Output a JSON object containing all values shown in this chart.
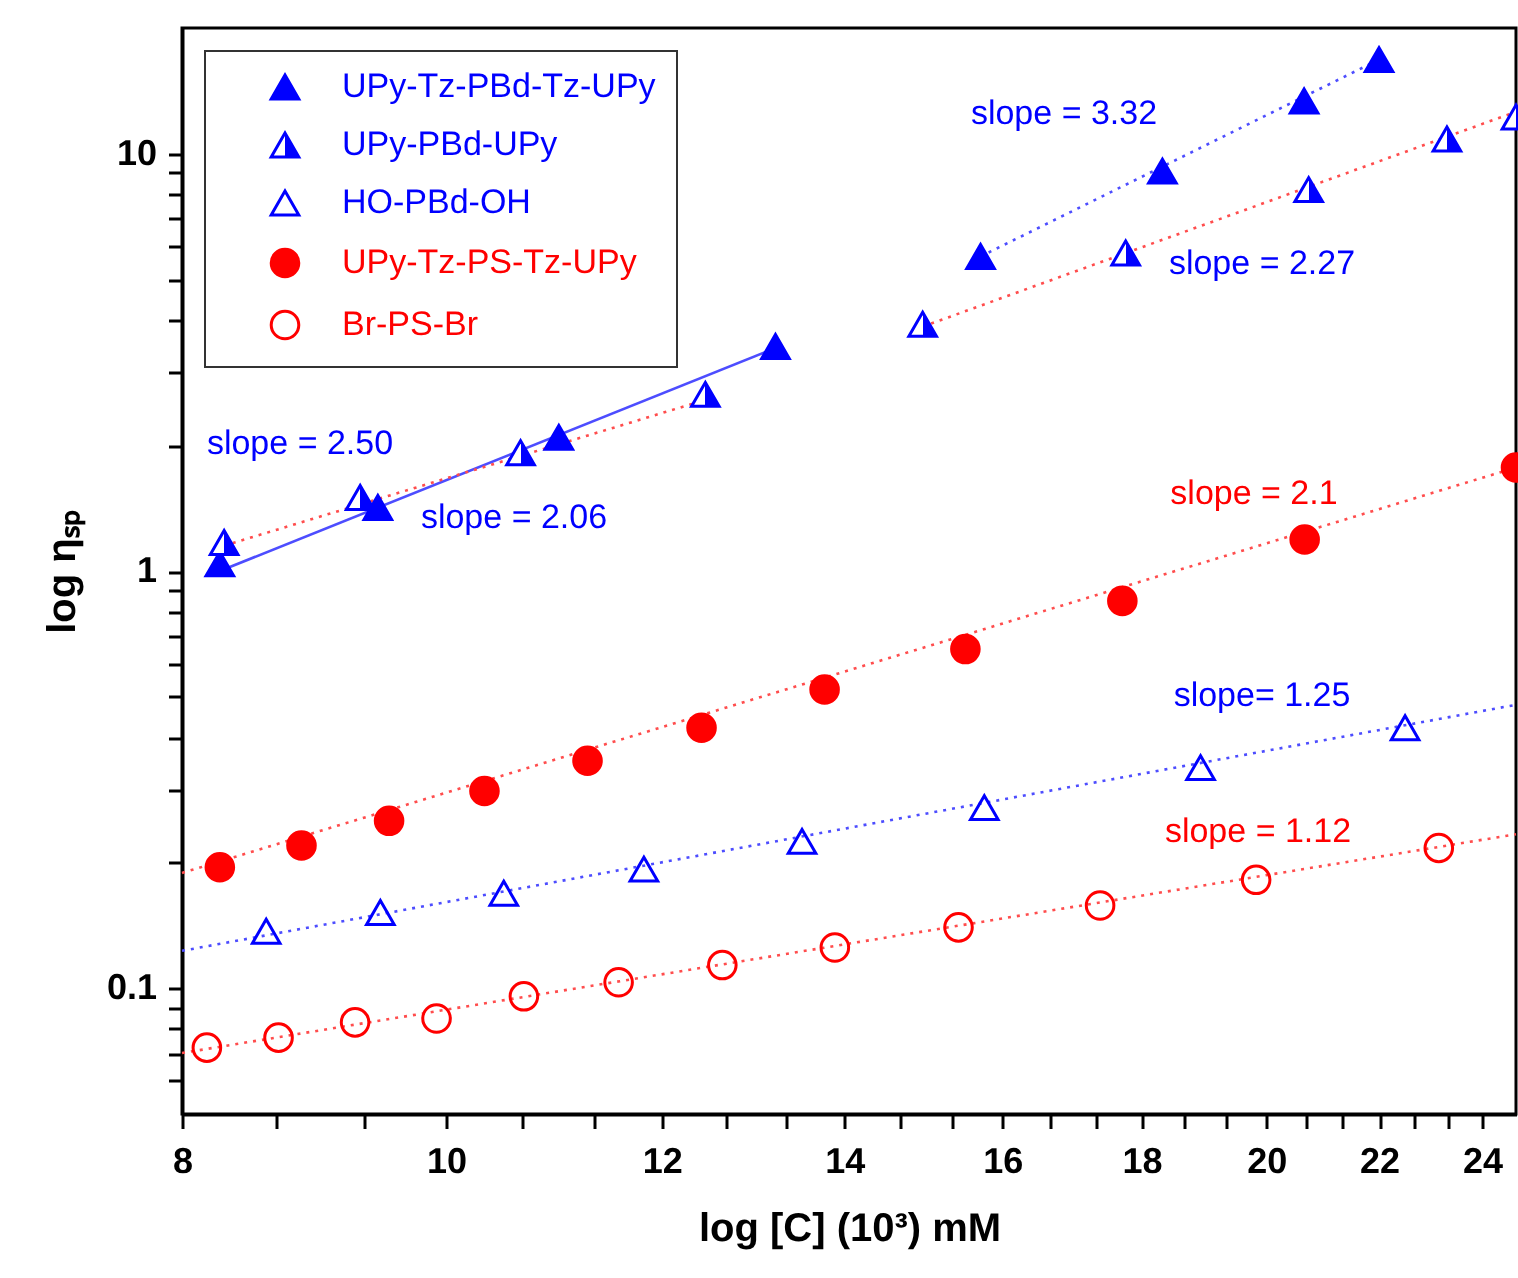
{
  "chart_data": {
    "type": "scatter",
    "xlabel": "log [C] (10³) mM",
    "ylabel": "log ηₛₚ",
    "log": "xy",
    "grid": false,
    "legend": "top left",
    "xlim": [
      8,
      24.7
    ],
    "ylim": [
      0.05,
      20
    ],
    "xticks": [
      8,
      {
        "value": 8.667,
        "label": null
      },
      {
        "value": 9.333,
        "label": null
      },
      10,
      {
        "value": 10.667,
        "label": null
      },
      {
        "value": 11.333,
        "label": null
      },
      12,
      {
        "value": 12.667,
        "label": null
      },
      {
        "value": 13.333,
        "label": null
      },
      14,
      {
        "value": 14.667,
        "label": null
      },
      {
        "value": 15.333,
        "label": null
      },
      16,
      {
        "value": 16.667,
        "label": null
      },
      {
        "value": 17.333,
        "label": null
      },
      18,
      {
        "value": 18.667,
        "label": null
      },
      {
        "value": 19.333,
        "label": null
      },
      20,
      {
        "value": 20.667,
        "label": null
      },
      {
        "value": 21.333,
        "label": null
      },
      22,
      {
        "value": 22.667,
        "label": null
      },
      {
        "value": 23.333,
        "label": null
      },
      24
    ],
    "yticks": [
      {
        "value": 0.06,
        "label": null
      },
      {
        "value": 0.07,
        "label": null
      },
      {
        "value": 0.08,
        "label": null
      },
      {
        "value": 0.09,
        "label": null
      },
      0.1,
      {
        "value": 0.2,
        "label": null
      },
      {
        "value": 0.3,
        "label": null
      },
      {
        "value": 0.4,
        "label": null
      },
      {
        "value": 0.5,
        "label": null
      },
      {
        "value": 0.6,
        "label": null
      },
      {
        "value": 0.7,
        "label": null
      },
      {
        "value": 0.8,
        "label": null
      },
      {
        "value": 0.9,
        "label": null
      },
      1,
      {
        "value": 2,
        "label": null
      },
      {
        "value": 3,
        "label": null
      },
      {
        "value": 4,
        "label": null
      },
      {
        "value": 5,
        "label": null
      },
      {
        "value": 6,
        "label": null
      },
      {
        "value": 7,
        "label": null
      },
      {
        "value": 8,
        "label": null
      },
      {
        "value": 9,
        "label": null
      },
      10
    ],
    "series": [
      {
        "name": "UPy-Tz-PBd-Tz-UPy",
        "type": "scatter",
        "marker": "triangle",
        "color": "#0000ff",
        "x": [
          8.26,
          9.44,
          11.0,
          13.21,
          15.71,
          18.32,
          20.65,
          22.0
        ],
        "values": [
          1.04,
          1.42,
          2.09,
          3.45,
          5.67,
          9.08,
          13.37,
          16.8
        ]
      },
      {
        "name": "UPy-PBd-UPy",
        "type": "scatter",
        "marker": "triangle",
        "color": "#0000ff",
        "x": [
          8.29,
          9.3,
          10.65,
          12.45,
          14.96,
          17.76,
          20.73,
          23.3,
          24.7
        ],
        "values": [
          1.17,
          1.5,
          1.92,
          2.65,
          3.9,
          5.78,
          8.2,
          10.84,
          12.24
        ]
      },
      {
        "name": "HO-PBd-OH",
        "type": "scatter",
        "marker": "triangle",
        "color": "#0000ff",
        "x": [
          8.59,
          9.46,
          10.5,
          11.82,
          13.51,
          15.76,
          18.92,
          22.49
        ],
        "values": [
          0.137,
          0.152,
          0.169,
          0.193,
          0.225,
          0.271,
          0.338,
          0.421
        ]
      },
      {
        "name": "UPy-Tz-PS-Tz-UPy",
        "type": "scatter",
        "marker": "circle",
        "color": "#ff0000",
        "x": [
          8.26,
          8.85,
          9.53,
          10.33,
          11.27,
          12.41,
          13.77,
          15.51,
          17.71,
          20.66,
          24.7
        ],
        "values": [
          0.195,
          0.22,
          0.252,
          0.297,
          0.351,
          0.421,
          0.52,
          0.65,
          0.848,
          1.19,
          1.77
        ]
      },
      {
        "name": "Br-PS-Br",
        "type": "scatter",
        "marker": "circle",
        "color": "#ff0000",
        "x": [
          8.17,
          8.68,
          9.26,
          9.92,
          10.68,
          11.57,
          12.63,
          13.89,
          15.42,
          17.38,
          19.83,
          23.14
        ],
        "values": [
          0.0721,
          0.0762,
          0.0829,
          0.0847,
          0.0957,
          0.1034,
          0.1137,
          0.1253,
          0.14,
          0.158,
          0.182,
          0.217
        ]
      },
      {
        "type": "line",
        "line_style": "solid",
        "color": "#4d4dff",
        "x": [
          8.26,
          13.21
        ],
        "values": [
          1.0,
          3.42
        ]
      },
      {
        "type": "line",
        "line_style": "dotted",
        "color": "#4d4dff",
        "x": [
          15.71,
          22.0
        ],
        "values": [
          5.67,
          16.8
        ]
      },
      {
        "type": "line",
        "line_style": "dotted",
        "color": "#ff4d4d",
        "x": [
          8.29,
          12.45
        ],
        "values": [
          1.15,
          2.57
        ]
      },
      {
        "type": "line",
        "line_style": "dotted",
        "color": "#ff4d4d",
        "x": [
          14.96,
          24.7
        ],
        "values": [
          3.85,
          12.6
        ]
      },
      {
        "type": "line",
        "line_style": "dotted",
        "color": "#4d4dff",
        "x": [
          8,
          24.7
        ],
        "values": [
          0.123,
          0.478
        ]
      },
      {
        "type": "line",
        "line_style": "dotted",
        "color": "#ff4d4d",
        "x": [
          8,
          24.7
        ],
        "values": [
          0.189,
          1.77
        ]
      },
      {
        "type": "line",
        "line_style": "dotted",
        "color": "#ff4d4d",
        "x": [
          8,
          24.7
        ],
        "values": [
          0.07,
          0.234
        ]
      }
    ],
    "annotations": [
      "slope = 2.50",
      "slope = 2.06",
      "slope = 3.32",
      "slope = 2.27",
      "slope = 2.1",
      "slope= 1.25",
      "slope = 1.12"
    ]
  }
}
